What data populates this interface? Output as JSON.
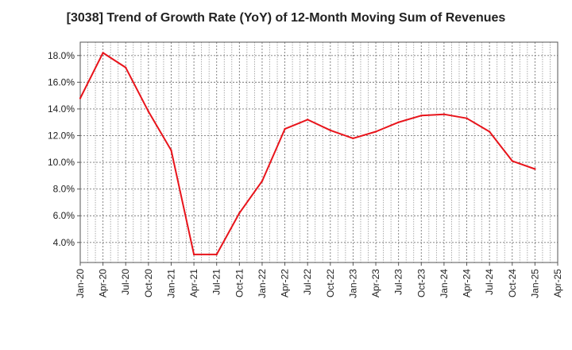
{
  "chart_data": {
    "type": "line",
    "title": "[3038]  Trend of Growth Rate (YoY) of 12-Month Moving Sum of Revenues",
    "xlabel": "",
    "ylabel": "",
    "x_ticks": [
      "Jan-20",
      "Apr-20",
      "Jul-20",
      "Oct-20",
      "Jan-21",
      "Apr-21",
      "Jul-21",
      "Oct-21",
      "Jan-22",
      "Apr-22",
      "Jul-22",
      "Oct-22",
      "Jan-23",
      "Apr-23",
      "Jul-23",
      "Oct-23",
      "Jan-24",
      "Apr-24",
      "Jul-24",
      "Oct-24",
      "Jan-25",
      "Apr-25"
    ],
    "y_ticks": [
      "4.0%",
      "6.0%",
      "8.0%",
      "10.0%",
      "12.0%",
      "14.0%",
      "16.0%",
      "18.0%"
    ],
    "y_tick_values": [
      4,
      6,
      8,
      10,
      12,
      14,
      16,
      18
    ],
    "ylim": [
      2.5,
      19.0
    ],
    "grid": true,
    "series": [
      {
        "color": "#e8141b",
        "x": [
          "Jan-20",
          "Apr-20",
          "Jul-20",
          "Oct-20",
          "Jan-21",
          "Apr-21",
          "Jul-21",
          "Oct-21",
          "Jan-22",
          "Apr-22",
          "Jul-22",
          "Oct-22",
          "Jan-23",
          "Apr-23",
          "Jul-23",
          "Oct-23",
          "Jan-24",
          "Apr-24",
          "Jul-24",
          "Oct-24",
          "Jan-25"
        ],
        "values": [
          14.8,
          18.2,
          17.1,
          13.8,
          10.9,
          3.1,
          3.1,
          6.2,
          8.6,
          12.5,
          13.2,
          12.4,
          11.8,
          12.3,
          13.0,
          13.5,
          13.6,
          13.3,
          12.3,
          10.1,
          9.5
        ]
      }
    ]
  }
}
